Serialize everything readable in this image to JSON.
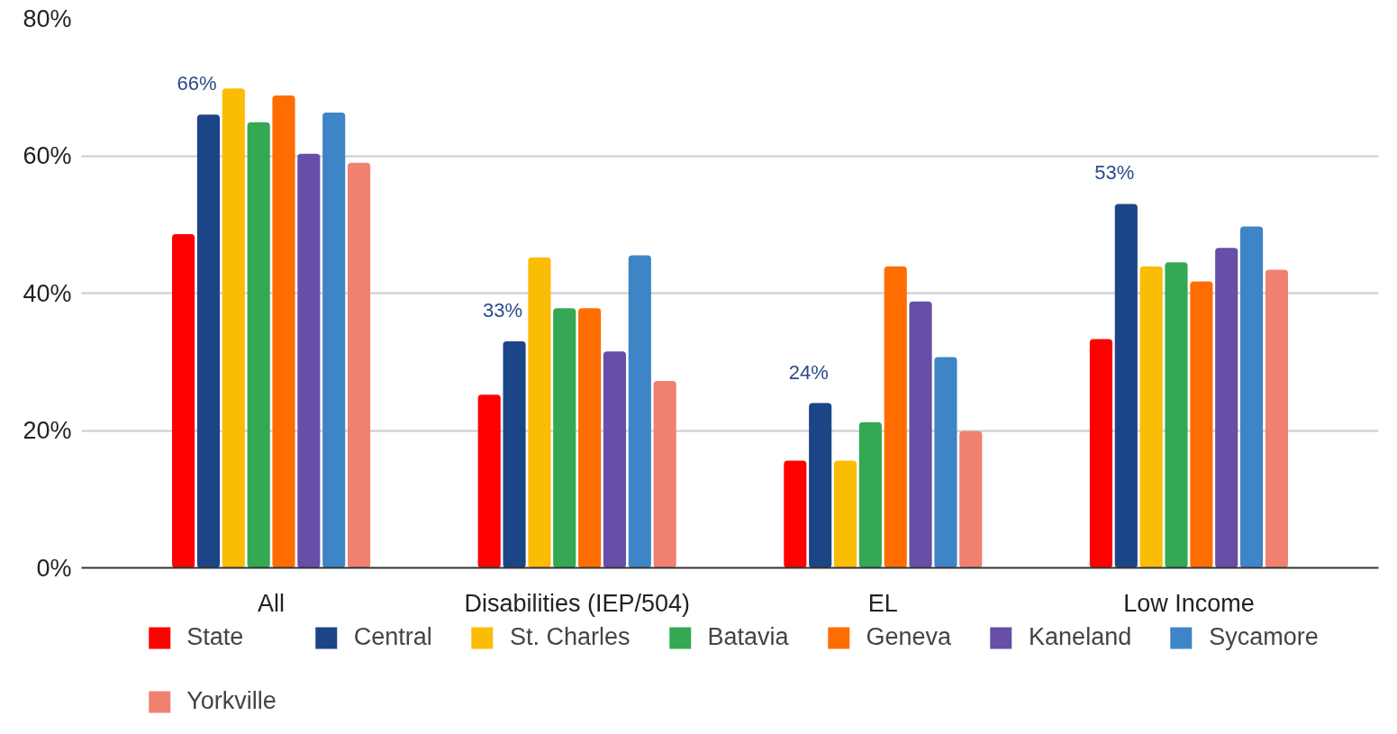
{
  "chart_data": {
    "type": "bar",
    "categories": [
      "All",
      "Disabilities (IEP/504)",
      "EL",
      "Low Income"
    ],
    "series": [
      {
        "name": "State",
        "color": "#ff0000",
        "values": [
          48.6,
          25.2,
          15.6,
          33.3
        ]
      },
      {
        "name": "Central",
        "color": "#1c4587",
        "values": [
          66,
          33,
          24,
          53
        ],
        "value_labels": [
          "66%",
          "33%",
          "24%",
          "53%"
        ]
      },
      {
        "name": "St. Charles",
        "color": "#fbbc04",
        "values": [
          69.8,
          45.2,
          15.6,
          43.9
        ]
      },
      {
        "name": "Batavia",
        "color": "#34a853",
        "values": [
          64.9,
          37.8,
          21.2,
          44.5
        ]
      },
      {
        "name": "Geneva",
        "color": "#ff6d01",
        "values": [
          68.8,
          37.8,
          43.9,
          41.7
        ]
      },
      {
        "name": "Kaneland",
        "color": "#674ea7",
        "values": [
          60.3,
          31.5,
          38.8,
          46.6
        ]
      },
      {
        "name": "Sycamore",
        "color": "#3d85c6",
        "values": [
          66.3,
          45.5,
          30.7,
          49.7
        ]
      },
      {
        "name": "Yorkville",
        "color": "#f08070",
        "values": [
          59.0,
          27.2,
          19.9,
          43.4
        ]
      }
    ],
    "ylim": [
      0,
      80
    ],
    "yticks": [
      {
        "value": 0,
        "label": "0%"
      },
      {
        "value": 20,
        "label": "20%"
      },
      {
        "value": 40,
        "label": "40%"
      },
      {
        "value": 60,
        "label": "60%"
      },
      {
        "value": 80,
        "label": "80%"
      }
    ],
    "grid": "y",
    "legend": "bottom"
  }
}
